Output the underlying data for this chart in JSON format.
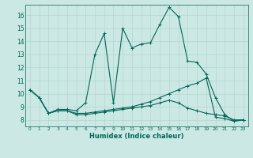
{
  "xlabel": "Humidex (Indice chaleur)",
  "bg_color": "#cce8e4",
  "grid_color": "#b0d8d0",
  "line_color": "#006655",
  "xlim": [
    -0.5,
    23.5
  ],
  "ylim": [
    7.5,
    16.8
  ],
  "yticks": [
    8,
    9,
    10,
    11,
    12,
    13,
    14,
    15,
    16
  ],
  "xticks": [
    0,
    1,
    2,
    3,
    4,
    5,
    6,
    7,
    8,
    9,
    10,
    11,
    12,
    13,
    14,
    15,
    16,
    17,
    18,
    19,
    20,
    21,
    22,
    23
  ],
  "series": [
    [
      10.3,
      9.7,
      8.5,
      8.8,
      8.8,
      8.7,
      9.3,
      13.0,
      14.6,
      9.3,
      15.0,
      13.5,
      13.8,
      13.9,
      15.3,
      16.6,
      15.9,
      12.5,
      12.4,
      11.5,
      9.7,
      8.4,
      7.9,
      8.0
    ],
    [
      10.3,
      9.7,
      8.5,
      8.7,
      8.7,
      8.5,
      8.5,
      8.6,
      8.7,
      8.8,
      8.9,
      9.0,
      9.2,
      9.4,
      9.7,
      10.0,
      10.3,
      10.6,
      10.8,
      11.2,
      8.2,
      8.1,
      7.9,
      8.0
    ],
    [
      10.3,
      9.7,
      8.5,
      8.7,
      8.7,
      8.4,
      8.4,
      8.5,
      8.6,
      8.7,
      8.8,
      8.9,
      9.0,
      9.1,
      9.3,
      9.5,
      9.3,
      8.9,
      8.7,
      8.5,
      8.4,
      8.3,
      8.0,
      8.0
    ]
  ]
}
